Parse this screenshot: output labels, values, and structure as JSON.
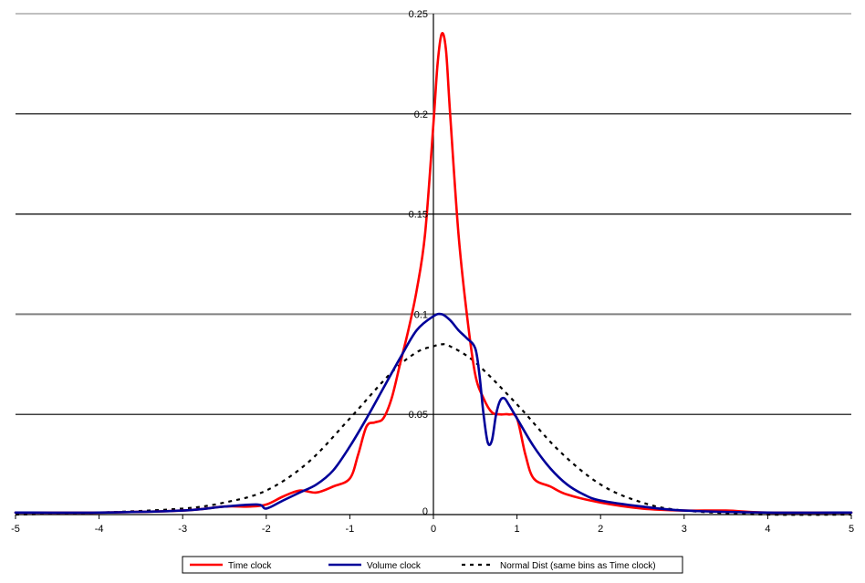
{
  "chart_data": {
    "type": "line",
    "title": "",
    "xlabel": "",
    "ylabel": "",
    "xlim": [
      -5,
      5
    ],
    "ylim": [
      0,
      0.25
    ],
    "x_ticks": [
      "-5",
      "-4",
      "-3",
      "-2",
      "-1",
      "0",
      "1",
      "2",
      "3",
      "4",
      "5"
    ],
    "y_ticks": [
      "0",
      "0.05",
      "0.1",
      "0.15",
      "0.2",
      "0.25"
    ],
    "grid": "horizontal",
    "legend_position": "bottom",
    "series": [
      {
        "name": "Time clock",
        "color": "#ff0000",
        "style": "solid",
        "x": [
          -5,
          -4,
          -3,
          -2.5,
          -2.2,
          -2.0,
          -1.8,
          -1.6,
          -1.4,
          -1.2,
          -1.0,
          -0.9,
          -0.8,
          -0.7,
          -0.6,
          -0.5,
          -0.4,
          -0.3,
          -0.2,
          -0.1,
          0,
          0.05,
          0.1,
          0.15,
          0.2,
          0.3,
          0.4,
          0.5,
          0.6,
          0.7,
          0.8,
          0.9,
          1.0,
          1.1,
          1.2,
          1.4,
          1.6,
          2.0,
          2.5,
          3.0,
          3.5,
          4.0,
          5.0
        ],
        "y": [
          0.001,
          0.001,
          0.002,
          0.004,
          0.004,
          0.005,
          0.009,
          0.012,
          0.011,
          0.014,
          0.018,
          0.03,
          0.044,
          0.046,
          0.048,
          0.058,
          0.075,
          0.092,
          0.112,
          0.14,
          0.195,
          0.225,
          0.24,
          0.232,
          0.2,
          0.14,
          0.1,
          0.07,
          0.058,
          0.051,
          0.05,
          0.05,
          0.048,
          0.03,
          0.018,
          0.014,
          0.01,
          0.006,
          0.003,
          0.002,
          0.002,
          0.001,
          0.001
        ]
      },
      {
        "name": "Volume clock",
        "color": "#000099",
        "style": "solid",
        "x": [
          -5,
          -4,
          -3,
          -2.5,
          -2.1,
          -2.0,
          -1.8,
          -1.6,
          -1.4,
          -1.2,
          -1.0,
          -0.8,
          -0.6,
          -0.4,
          -0.2,
          0,
          0.1,
          0.2,
          0.3,
          0.4,
          0.5,
          0.55,
          0.6,
          0.65,
          0.7,
          0.75,
          0.8,
          0.85,
          0.9,
          1.0,
          1.2,
          1.4,
          1.6,
          1.8,
          2.0,
          2.5,
          3.0,
          4.0,
          5.0
        ],
        "y": [
          0.001,
          0.001,
          0.002,
          0.004,
          0.005,
          0.003,
          0.007,
          0.011,
          0.015,
          0.022,
          0.034,
          0.048,
          0.063,
          0.078,
          0.092,
          0.099,
          0.1,
          0.097,
          0.092,
          0.088,
          0.083,
          0.07,
          0.05,
          0.036,
          0.037,
          0.05,
          0.057,
          0.058,
          0.055,
          0.048,
          0.034,
          0.023,
          0.015,
          0.01,
          0.007,
          0.004,
          0.002,
          0.001,
          0.001
        ]
      },
      {
        "name": "Normal Dist (same bins as Time clock)",
        "color": "#000000",
        "style": "dashed",
        "x": [
          -5,
          -4,
          -3,
          -2.5,
          -2.0,
          -1.5,
          -1.0,
          -0.5,
          -0.2,
          0,
          0.1,
          0.2,
          0.5,
          1.0,
          1.5,
          2.0,
          2.5,
          3.0,
          4.0,
          5.0
        ],
        "y": [
          0.0,
          0.001,
          0.003,
          0.006,
          0.012,
          0.026,
          0.048,
          0.071,
          0.081,
          0.084,
          0.085,
          0.084,
          0.076,
          0.055,
          0.032,
          0.015,
          0.006,
          0.002,
          0.0,
          0.0
        ]
      }
    ]
  }
}
